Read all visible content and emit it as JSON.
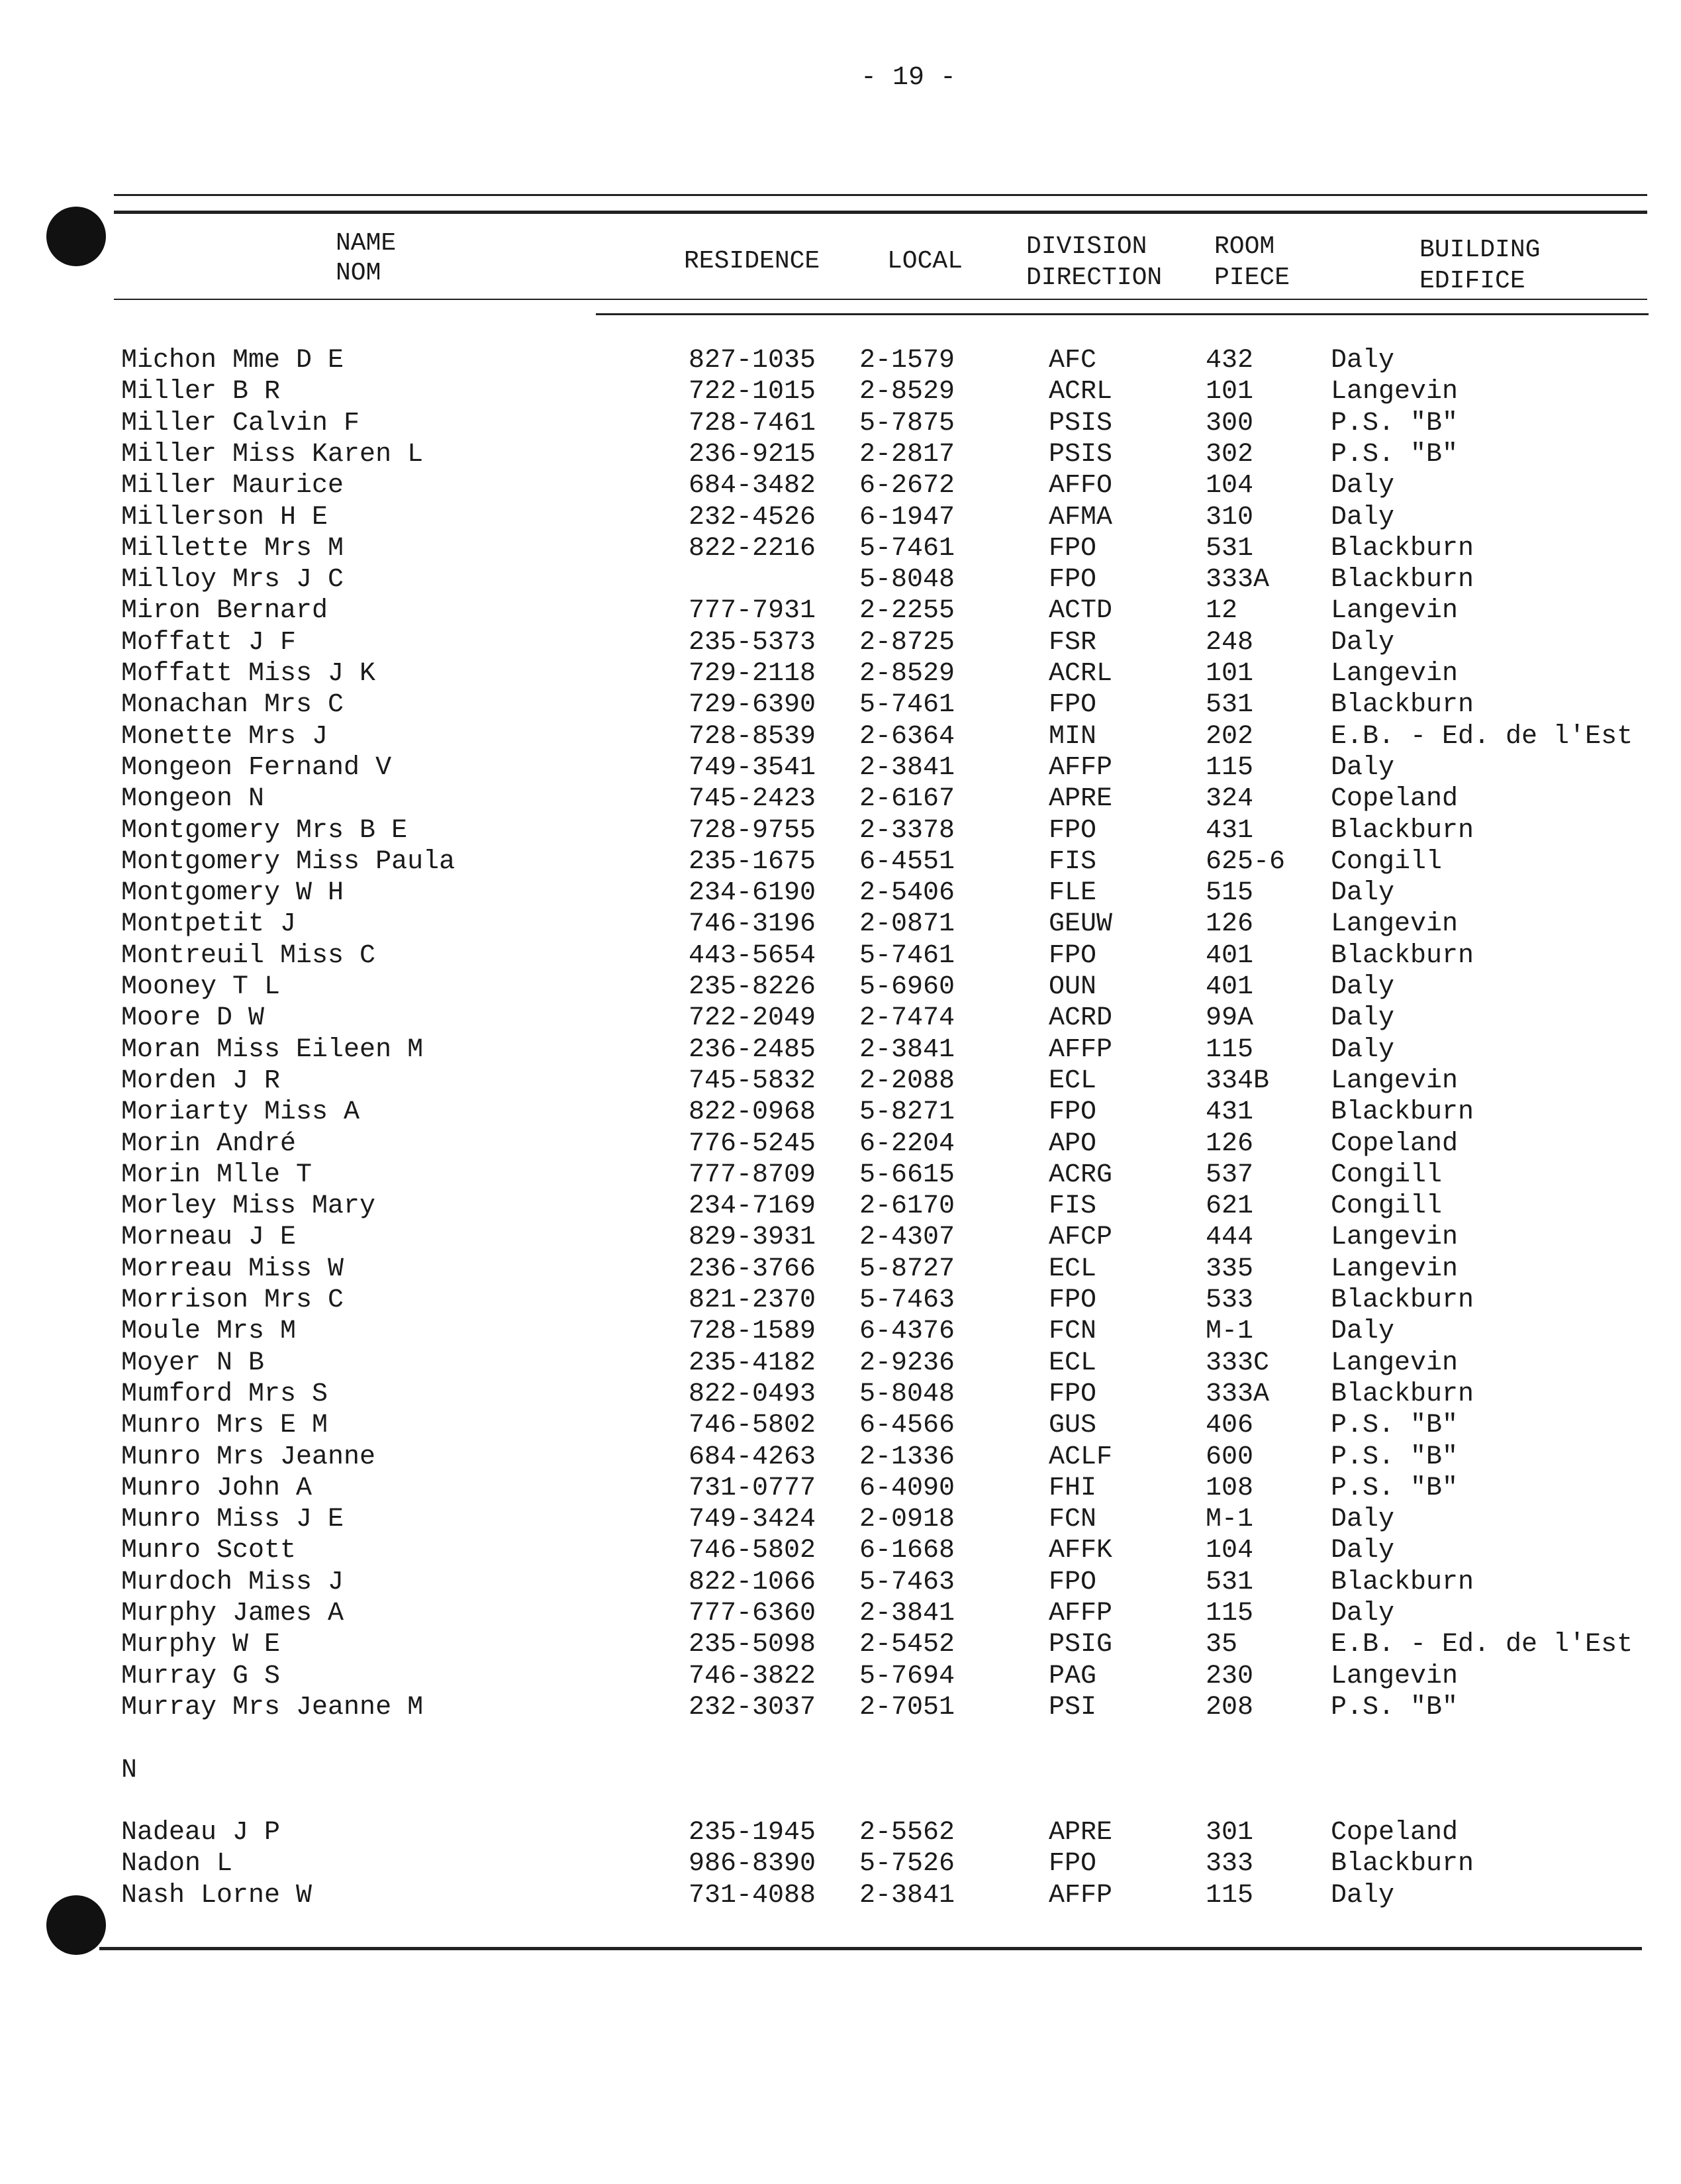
{
  "page_number": "- 19 -",
  "header": {
    "name": [
      "NAME",
      "NOM"
    ],
    "residence": "RESIDENCE",
    "local": "LOCAL",
    "division": [
      "DIVISION",
      "DIRECTION"
    ],
    "room": [
      "ROOM",
      "PIECE"
    ],
    "building": [
      "BUILDING",
      "EDIFICE"
    ]
  },
  "sections": [
    {
      "letter": "",
      "rows": [
        [
          "Michon Mme D E",
          "827-1035",
          "2-1579",
          "AFC",
          "432",
          "Daly"
        ],
        [
          "Miller B R",
          "722-1015",
          "2-8529",
          "ACRL",
          "101",
          "Langevin"
        ],
        [
          "Miller Calvin F",
          "728-7461",
          "5-7875",
          "PSIS",
          "300",
          "P.S. \"B\""
        ],
        [
          "Miller Miss Karen L",
          "236-9215",
          "2-2817",
          "PSIS",
          "302",
          "P.S. \"B\""
        ],
        [
          "Miller Maurice",
          "684-3482",
          "6-2672",
          "AFFO",
          "104",
          "Daly"
        ],
        [
          "Millerson H E",
          "232-4526",
          "6-1947",
          "AFMA",
          "310",
          "Daly"
        ],
        [
          "Millette Mrs M",
          "822-2216",
          "5-7461",
          "FPO",
          "531",
          "Blackburn"
        ],
        [
          "Milloy Mrs J C",
          "",
          "5-8048",
          "FPO",
          "333A",
          "Blackburn"
        ],
        [
          "Miron Bernard",
          "777-7931",
          "2-2255",
          "ACTD",
          "12",
          "Langevin"
        ],
        [
          "Moffatt J F",
          "235-5373",
          "2-8725",
          "FSR",
          "248",
          "Daly"
        ],
        [
          "Moffatt Miss J K",
          "729-2118",
          "2-8529",
          "ACRL",
          "101",
          "Langevin"
        ],
        [
          "Monachan Mrs C",
          "729-6390",
          "5-7461",
          "FPO",
          "531",
          "Blackburn"
        ],
        [
          "Monette Mrs J",
          "728-8539",
          "2-6364",
          "MIN",
          "202",
          "E.B. - Ed. de l'Est"
        ],
        [
          "Mongeon Fernand V",
          "749-3541",
          "2-3841",
          "AFFP",
          "115",
          "Daly"
        ],
        [
          "Mongeon N",
          "745-2423",
          "2-6167",
          "APRE",
          "324",
          "Copeland"
        ],
        [
          "Montgomery Mrs B E",
          "728-9755",
          "2-3378",
          "FPO",
          "431",
          "Blackburn"
        ],
        [
          "Montgomery Miss Paula",
          "235-1675",
          "6-4551",
          "FIS",
          "625-6",
          "Congill"
        ],
        [
          "Montgomery W H",
          "234-6190",
          "2-5406",
          "FLE",
          "515",
          "Daly"
        ],
        [
          "Montpetit J",
          "746-3196",
          "2-0871",
          "GEUW",
          "126",
          "Langevin"
        ],
        [
          "Montreuil Miss C",
          "443-5654",
          "5-7461",
          "FPO",
          "401",
          "Blackburn"
        ],
        [
          "Mooney T L",
          "235-8226",
          "5-6960",
          "OUN",
          "401",
          "Daly"
        ],
        [
          "Moore D W",
          "722-2049",
          "2-7474",
          "ACRD",
          "99A",
          "Daly"
        ],
        [
          "Moran Miss Eileen M",
          "236-2485",
          "2-3841",
          "AFFP",
          "115",
          "Daly"
        ],
        [
          "Morden J R",
          "745-5832",
          "2-2088",
          "ECL",
          "334B",
          "Langevin"
        ],
        [
          "Moriarty Miss A",
          "822-0968",
          "5-8271",
          "FPO",
          "431",
          "Blackburn"
        ],
        [
          "Morin André",
          "776-5245",
          "6-2204",
          "APO",
          "126",
          "Copeland"
        ],
        [
          "Morin Mlle T",
          "777-8709",
          "5-6615",
          "ACRG",
          "537",
          "Congill"
        ],
        [
          "Morley Miss Mary",
          "234-7169",
          "2-6170",
          "FIS",
          "621",
          "Congill"
        ],
        [
          "Morneau J E",
          "829-3931",
          "2-4307",
          "AFCP",
          "444",
          "Langevin"
        ],
        [
          "Morreau Miss W",
          "236-3766",
          "5-8727",
          "ECL",
          "335",
          "Langevin"
        ],
        [
          "Morrison Mrs C",
          "821-2370",
          "5-7463",
          "FPO",
          "533",
          "Blackburn"
        ],
        [
          "Moule Mrs M",
          "728-1589",
          "6-4376",
          "FCN",
          "M-1",
          "Daly"
        ],
        [
          "Moyer N B",
          "235-4182",
          "2-9236",
          "ECL",
          "333C",
          "Langevin"
        ],
        [
          "Mumford Mrs S",
          "822-0493",
          "5-8048",
          "FPO",
          "333A",
          "Blackburn"
        ],
        [
          "Munro Mrs E M",
          "746-5802",
          "6-4566",
          "GUS",
          "406",
          "P.S. \"B\""
        ],
        [
          "Munro Mrs Jeanne",
          "684-4263",
          "2-1336",
          "ACLF",
          "600",
          "P.S. \"B\""
        ],
        [
          "Munro John A",
          "731-0777",
          "6-4090",
          "FHI",
          "108",
          "P.S. \"B\""
        ],
        [
          "Munro Miss J E",
          "749-3424",
          "2-0918",
          "FCN",
          "M-1",
          "Daly"
        ],
        [
          "Munro Scott",
          "746-5802",
          "6-1668",
          "AFFK",
          "104",
          "Daly"
        ],
        [
          "Murdoch Miss J",
          "822-1066",
          "5-7463",
          "FPO",
          "531",
          "Blackburn"
        ],
        [
          "Murphy James A",
          "777-6360",
          "2-3841",
          "AFFP",
          "115",
          "Daly"
        ],
        [
          "Murphy W E",
          "235-5098",
          "2-5452",
          "PSIG",
          "35",
          "E.B. - Ed. de l'Est"
        ],
        [
          "Murray G S",
          "746-3822",
          "5-7694",
          "PAG",
          "230",
          "Langevin"
        ],
        [
          "Murray Mrs Jeanne M",
          "232-3037",
          "2-7051",
          "PSI",
          "208",
          "P.S. \"B\""
        ]
      ]
    },
    {
      "letter": "N",
      "rows": [
        [
          "Nadeau J P",
          "235-1945",
          "2-5562",
          "APRE",
          "301",
          "Copeland"
        ],
        [
          "Nadon L",
          "986-8390",
          "5-7526",
          "FPO",
          "333",
          "Blackburn"
        ],
        [
          "Nash Lorne W",
          "731-4088",
          "2-3841",
          "AFFP",
          "115",
          "Daly"
        ]
      ]
    }
  ]
}
